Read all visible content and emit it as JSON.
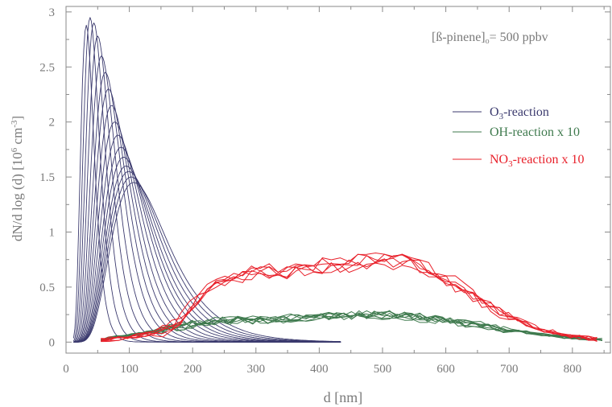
{
  "chart_data": {
    "type": "line",
    "title": "",
    "annotation": {
      "main": "[ß-pinene]",
      "sub": "o",
      "rest": "= 500 ppbv"
    },
    "xlabel": "d [nm]",
    "ylabel": {
      "main": "dN/d log (d) [10",
      "sup": "6",
      "mid": " cm",
      "sup2": "-3",
      "end": "]"
    },
    "xlim": [
      0,
      860
    ],
    "ylim": [
      -0.1,
      3.05
    ],
    "xticks": [
      0,
      100,
      200,
      300,
      400,
      500,
      600,
      700,
      800
    ],
    "yticks": [
      0,
      0.5,
      1,
      1.5,
      2,
      2.5,
      3
    ],
    "grid": false,
    "legend_position": "upper-right",
    "series": [
      {
        "name": "O3-reaction",
        "label_parts": {
          "pre": "O",
          "sub": "3",
          "post": "-reaction"
        },
        "color": "#3b3a6e",
        "description_type": "family of lognormal size distributions",
        "peaks_nm": [
          32,
          38,
          44,
          50,
          56,
          62,
          67,
          72,
          77,
          82,
          87,
          91,
          95,
          99,
          103,
          107
        ],
        "peak_values": [
          2.88,
          2.95,
          2.9,
          2.78,
          2.6,
          2.45,
          2.3,
          2.15,
          2.0,
          1.88,
          1.77,
          1.68,
          1.6,
          1.55,
          1.5,
          1.45
        ],
        "x_end_nm": 435
      },
      {
        "name": "OH-reaction x 10",
        "label_parts": {
          "pre": "OH-reaction x 10",
          "sub": "",
          "post": ""
        },
        "color": "#3f7a4e",
        "description_type": "overlapping noisy broad distributions",
        "x": [
          50,
          100,
          150,
          200,
          250,
          300,
          350,
          400,
          450,
          500,
          550,
          600,
          650,
          700,
          750,
          800,
          850
        ],
        "y": [
          0.02,
          0.06,
          0.11,
          0.16,
          0.2,
          0.2,
          0.21,
          0.23,
          0.24,
          0.25,
          0.23,
          0.2,
          0.15,
          0.11,
          0.07,
          0.04,
          0.02
        ]
      },
      {
        "name": "NO3-reaction x 10",
        "label_parts": {
          "pre": "NO",
          "sub": "3",
          "post": "-reaction x 10"
        },
        "color": "#e8202a",
        "description_type": "overlapping noisy broad distributions",
        "x": [
          50,
          100,
          150,
          180,
          200,
          225,
          250,
          300,
          350,
          400,
          450,
          500,
          550,
          600,
          650,
          700,
          750,
          800,
          850
        ],
        "y": [
          0.02,
          0.04,
          0.09,
          0.2,
          0.33,
          0.46,
          0.55,
          0.62,
          0.63,
          0.67,
          0.7,
          0.73,
          0.7,
          0.57,
          0.39,
          0.22,
          0.11,
          0.05,
          0.02
        ]
      }
    ]
  }
}
